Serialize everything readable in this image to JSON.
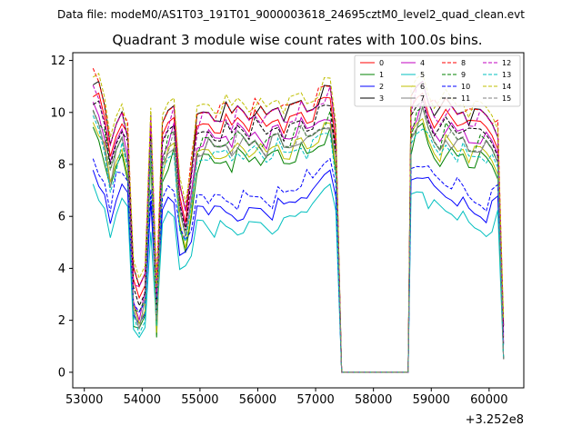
{
  "chart_data": {
    "type": "line",
    "suptitle": "Data file: modeM0/AS1T03_191T01_9000003618_24695cztM0_level2_quad_clean.evt",
    "title": "Quadrant 3 module wise count rates with 100.0s bins.",
    "x_offset_label": "+3.252e8",
    "xlabel": "",
    "ylabel": "",
    "xlim": [
      52800,
      60600
    ],
    "ylim": [
      -0.6,
      12.3
    ],
    "x_ticks": [
      53000,
      54000,
      55000,
      56000,
      57000,
      58000,
      59000,
      60000
    ],
    "x_tick_labels": [
      "53000",
      "54000",
      "55000",
      "56000",
      "57000",
      "58000",
      "59000",
      "60000"
    ],
    "y_ticks": [
      0,
      2,
      4,
      6,
      8,
      10,
      12
    ],
    "y_tick_labels": [
      "0",
      "2",
      "4",
      "6",
      "8",
      "10",
      "12"
    ],
    "x_segments": [
      [
        53150,
        53250,
        53350,
        53450,
        53550,
        53650,
        53750,
        53850,
        53950,
        54050,
        54150,
        54250,
        54350,
        54450,
        54550,
        54650,
        54750,
        54850,
        54950,
        55050,
        55150,
        55250,
        55350,
        55450,
        55550,
        55650,
        55750,
        55850,
        55950,
        56050,
        56150,
        56250,
        56350,
        56450,
        56550,
        56650,
        56750,
        56850,
        56950,
        57050,
        57150,
        57250,
        57350,
        57450,
        57500
      ],
      [
        57500,
        58600
      ],
      [
        58600,
        58650,
        58750,
        58850,
        58950,
        59050,
        59150,
        59250,
        59350,
        59450,
        59550,
        59650,
        59750,
        59850,
        59950,
        60050,
        60150,
        60250
      ]
    ],
    "zero_level": 0,
    "base_high_a": [
      11.0,
      10.6,
      9.8,
      8.4,
      9.3,
      9.9,
      9.0,
      3.5,
      2.9,
      3.5,
      9.7,
      2.9,
      9.0,
      9.6,
      9.9,
      7.0,
      6.1,
      7.6,
      9.4,
      9.6,
      9.7,
      9.5,
      9.6,
      9.8,
      9.5,
      9.9,
      9.8,
      9.6,
      9.9,
      9.7,
      9.5,
      9.8,
      10.0,
      9.6,
      9.7,
      9.9,
      10.1,
      9.8,
      10.0,
      10.3,
      10.5,
      10.6,
      9.0,
      0,
      0
    ],
    "base_high_b": [
      0,
      10.1,
      10.6,
      10.9,
      10.2,
      9.8,
      9.6,
      10.1,
      9.9,
      9.7,
      9.9,
      9.5,
      9.6,
      9.7,
      9.6,
      9.4,
      9.0,
      1.2
    ],
    "base_low_a": [
      7.6,
      7.1,
      6.9,
      5.9,
      6.9,
      7.0,
      6.8,
      2.2,
      2.0,
      2.5,
      6.3,
      2.2,
      6.2,
      6.8,
      6.7,
      4.8,
      4.4,
      4.9,
      6.4,
      6.5,
      6.3,
      6.1,
      6.2,
      6.1,
      6.1,
      6.0,
      6.2,
      6.1,
      6.2,
      6.3,
      6.2,
      6.1,
      6.4,
      6.3,
      6.5,
      6.6,
      6.9,
      7.0,
      6.8,
      7.2,
      7.6,
      7.9,
      7.0,
      0,
      0
    ],
    "base_low_b": [
      0,
      7.4,
      7.6,
      7.7,
      7.2,
      7.0,
      6.9,
      6.8,
      6.8,
      6.7,
      6.5,
      6.2,
      6.1,
      6.1,
      6.0,
      6.3,
      6.6,
      1.0
    ],
    "series": [
      {
        "name": "0",
        "color": "#ff0000",
        "dash": "solid",
        "shift": -0.1
      },
      {
        "name": "1",
        "color": "#008000",
        "dash": "solid",
        "shift": -1.5
      },
      {
        "name": "2",
        "color": "#0000ff",
        "dash": "solid",
        "shift": 0.0,
        "low": true
      },
      {
        "name": "3",
        "color": "#000000",
        "dash": "solid",
        "shift": 0.3
      },
      {
        "name": "4",
        "color": "#c000c0",
        "dash": "solid",
        "shift": -0.6
      },
      {
        "name": "5",
        "color": "#00bfbf",
        "dash": "solid",
        "shift": -0.6,
        "low": true
      },
      {
        "name": "6",
        "color": "#bfbf00",
        "dash": "solid",
        "shift": -1.2
      },
      {
        "name": "7",
        "color": "#808080",
        "dash": "solid",
        "shift": -1.0
      },
      {
        "name": "8",
        "color": "#ff0000",
        "dash": "dashed",
        "shift": 0.4
      },
      {
        "name": "9",
        "color": "#008000",
        "dash": "dashed",
        "shift": -0.8
      },
      {
        "name": "10",
        "color": "#0000ff",
        "dash": "dashed",
        "shift": 0.5,
        "low": true
      },
      {
        "name": "11",
        "color": "#000000",
        "dash": "dashed",
        "shift": -0.4
      },
      {
        "name": "12",
        "color": "#c000c0",
        "dash": "dashed",
        "shift": 0.1
      },
      {
        "name": "13",
        "color": "#00bfbf",
        "dash": "dashed",
        "shift": -1.3
      },
      {
        "name": "14",
        "color": "#bfbf00",
        "dash": "dashed",
        "shift": 0.6
      },
      {
        "name": "15",
        "color": "#808080",
        "dash": "dashed",
        "shift": -0.9
      }
    ]
  }
}
